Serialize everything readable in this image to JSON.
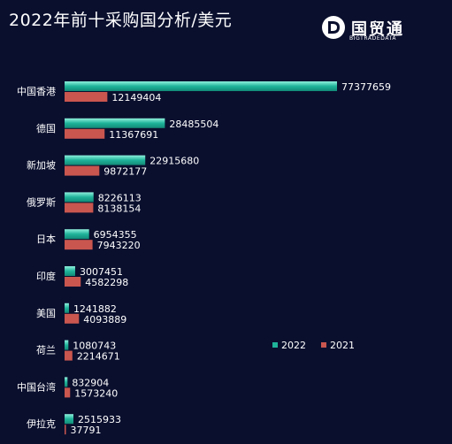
{
  "title": "2022年前十采购国分析/美元",
  "logo": {
    "name": "国贸通",
    "sub": "BIGTRADEDATA"
  },
  "colors": {
    "s2022": "#1fb39a",
    "s2022_light": "#7fe9d4",
    "s2021": "#c9564f",
    "background": "#0a0f2e"
  },
  "chart_data": {
    "type": "bar",
    "orientation": "horizontal",
    "categories": [
      "中国香港",
      "德国",
      "新加坡",
      "俄罗斯",
      "日本",
      "印度",
      "美国",
      "荷兰",
      "中国台湾",
      "伊拉克"
    ],
    "series": [
      {
        "name": "2022",
        "values": [
          77377659,
          28485504,
          22915680,
          8226113,
          6954355,
          3007451,
          1241882,
          1080743,
          832904,
          2515933
        ]
      },
      {
        "name": "2021",
        "values": [
          12149404,
          11367691,
          9872177,
          8138154,
          7943220,
          4582298,
          4093889,
          2214671,
          1573240,
          37791
        ]
      }
    ],
    "grid": false,
    "legend": "bottom-right"
  }
}
